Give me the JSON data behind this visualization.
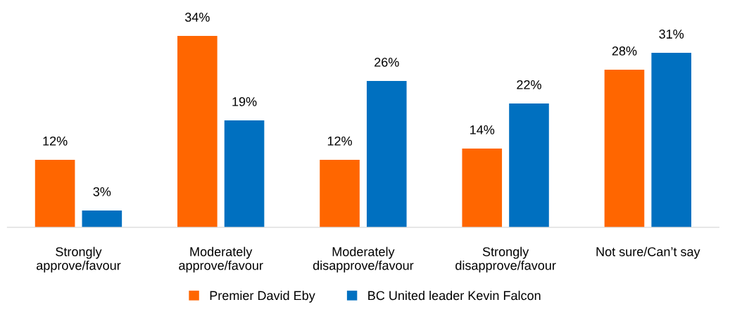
{
  "chart_data": {
    "type": "bar",
    "categories": [
      "Strongly\napprove/favour",
      "Moderately\napprove/favour",
      "Moderately\ndisapprove/favour",
      "Strongly\ndisapprove/favour",
      "Not sure/Can’t say"
    ],
    "series": [
      {
        "name": "Premier David Eby",
        "color": "#ff6600",
        "values": [
          12,
          34,
          12,
          14,
          28
        ],
        "value_labels": [
          "12%",
          "34%",
          "12%",
          "14%",
          "28%"
        ]
      },
      {
        "name": "BC United leader Kevin Falcon",
        "color": "#0070c0",
        "values": [
          3,
          19,
          26,
          22,
          31
        ],
        "value_labels": [
          "3%",
          "19%",
          "26%",
          "22%",
          "31%"
        ]
      }
    ],
    "tick_labels": "x",
    "legend": "bottom"
  }
}
